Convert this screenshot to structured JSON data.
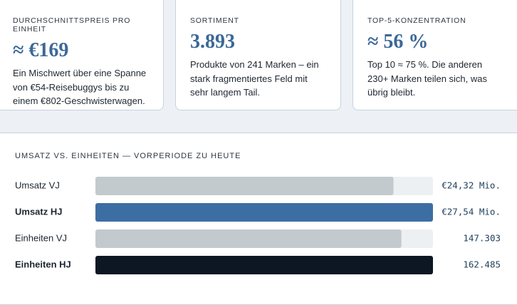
{
  "cards": [
    {
      "label": "DURCHSCHNITTSPREIS PRO EINHEIT",
      "value": "≈ €169",
      "text": "Ein Mischwert über eine Spanne von €54-Reisebuggys bis zu einem €802-Geschwisterwagen."
    },
    {
      "label": "SORTIMENT",
      "value": "3.893",
      "text": "Produkte von 241 Marken – ein stark fragmentiertes Feld mit sehr langem Tail."
    },
    {
      "label": "TOP-5-KONZENTRATION",
      "value": "≈ 56 %",
      "text": "Top 10 ≈ 75 %. Die anderen 230+ Marken teilen sich, was übrig bleibt."
    }
  ],
  "chart_data": [
    {
      "type": "bar",
      "orientation": "horizontal",
      "title": "UMSATZ VS. EINHEITEN — VORPERIODE ZU HEUTE",
      "categories": [
        "Umsatz VJ",
        "Umsatz HJ"
      ],
      "values": [
        24.32,
        27.54
      ],
      "value_labels": [
        "€24,32 Mio.",
        "€27,54 Mio."
      ],
      "colors": [
        "#c3cacd",
        "#3d6ea3"
      ]
    },
    {
      "type": "bar",
      "orientation": "horizontal",
      "categories": [
        "Einheiten VJ",
        "Einheiten HJ"
      ],
      "values": [
        147303,
        162485
      ],
      "value_labels": [
        "147.303",
        "162.485"
      ],
      "colors": [
        "#c3cacd",
        "#0c1723"
      ]
    }
  ]
}
